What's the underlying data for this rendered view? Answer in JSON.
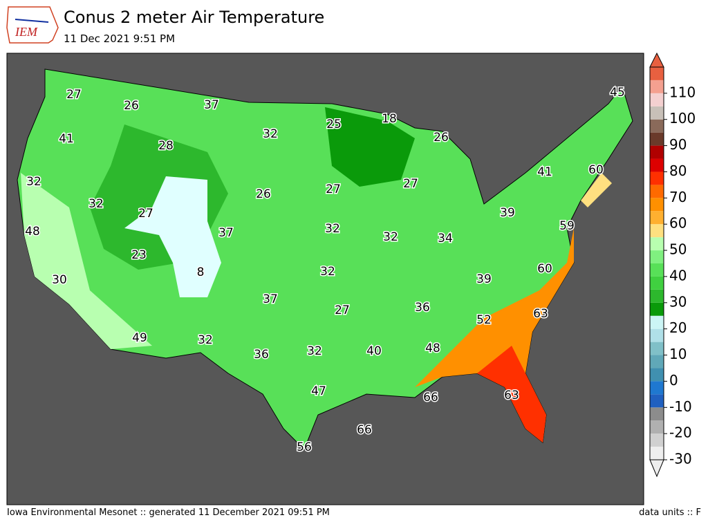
{
  "header": {
    "title": "Conus 2 meter Air Temperature",
    "subtitle": "11 Dec 2021 9:51 PM",
    "logo": "IEM"
  },
  "map": {
    "labels": [
      27,
      26,
      37,
      32,
      25,
      18,
      26,
      45,
      41,
      28,
      32,
      26,
      27,
      27,
      41,
      60,
      32,
      27,
      37,
      32,
      32,
      34,
      39,
      59,
      48,
      23,
      8,
      32,
      39,
      60,
      30,
      37,
      27,
      36,
      52,
      63,
      49,
      32,
      36,
      32,
      40,
      48,
      66,
      47,
      63,
      56,
      66
    ]
  },
  "colorbar": {
    "range": [
      -30,
      120
    ],
    "step": 5,
    "colors": [
      "#eeeeee",
      "#d0d0d0",
      "#b0b0b0",
      "#8c8c8c",
      "#2060c0",
      "#1f78d0",
      "#4090b0",
      "#60a8b8",
      "#80c0c8",
      "#b0e0e8",
      "#ccf5f5",
      "#0a9a0a",
      "#2db82d",
      "#40d040",
      "#58e058",
      "#80f080",
      "#b8ffb0",
      "#ffe080",
      "#ffb030",
      "#ff9000",
      "#ff6a00",
      "#ff3000",
      "#dd0000",
      "#b00000",
      "#6a3a2a",
      "#8a6a5a",
      "#c8c0b8",
      "#f4d0d0",
      "#f4a090",
      "#e86040"
    ],
    "ticks": [
      -30,
      -20,
      -10,
      0,
      10,
      20,
      30,
      40,
      50,
      60,
      70,
      80,
      90,
      100,
      110
    ]
  },
  "footer": {
    "left": "Iowa Environmental Mesonet :: generated 11 December 2021 09:51 PM",
    "right": "data units :: F"
  }
}
